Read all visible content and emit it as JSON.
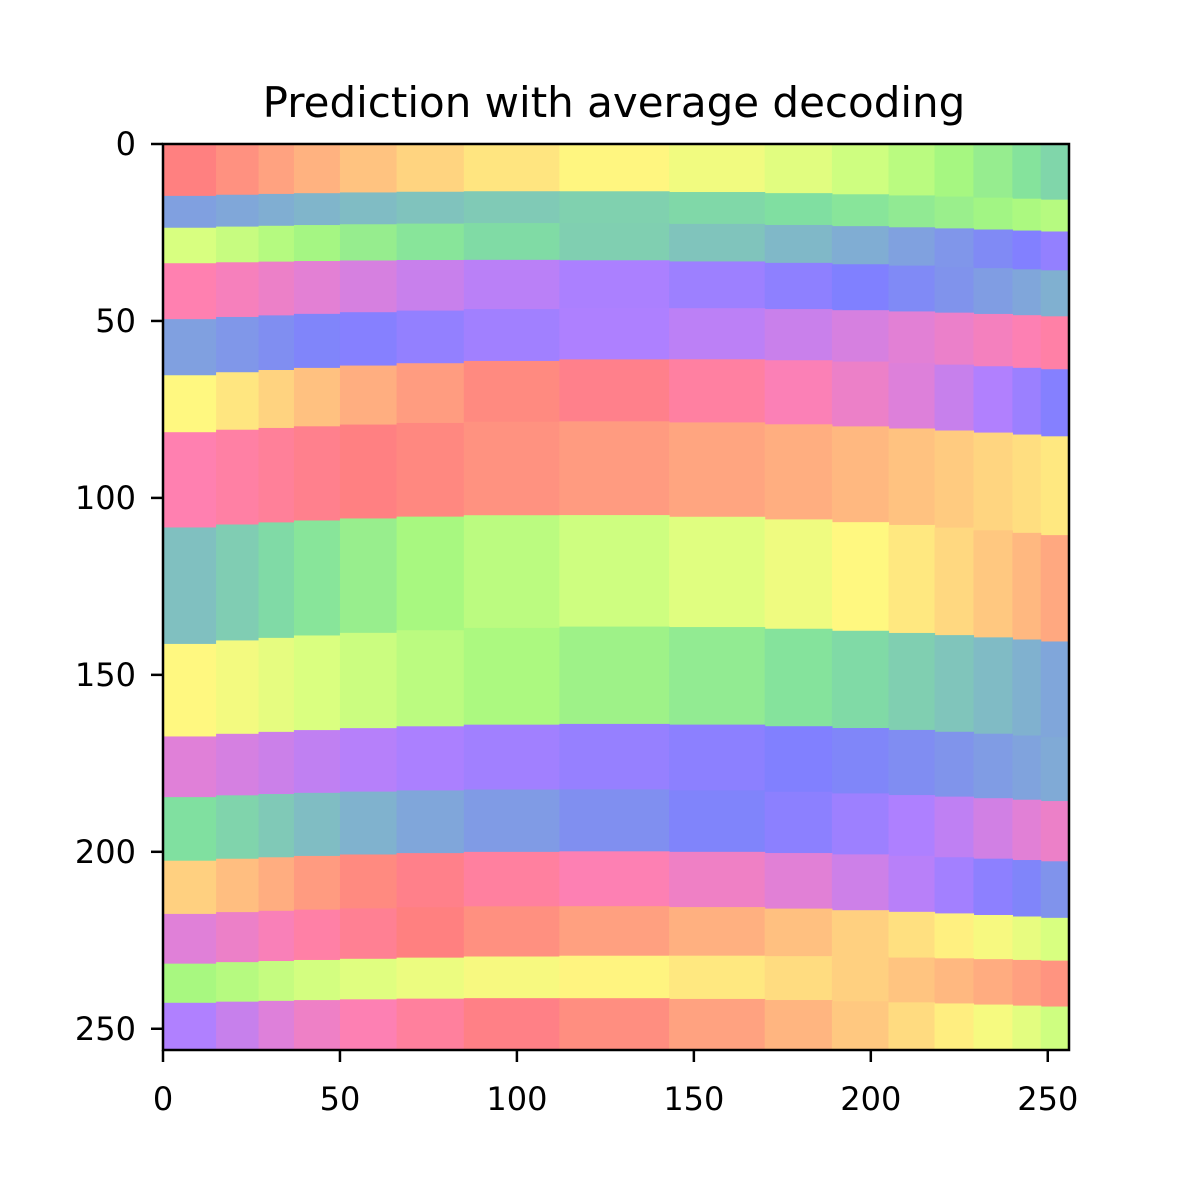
{
  "chart_data": {
    "type": "heatmap",
    "title": "Prediction with average decoding",
    "xlabel": "",
    "ylabel": "",
    "xlim": [
      0,
      256
    ],
    "ylim": [
      256,
      0
    ],
    "y_axis_inverted": true,
    "x_ticks": [
      "0",
      "50",
      "100",
      "150",
      "200",
      "250"
    ],
    "y_ticks": [
      "0",
      "50",
      "100",
      "150",
      "200",
      "250"
    ],
    "x_tick_values": [
      0,
      50,
      100,
      150,
      200,
      250
    ],
    "y_tick_values": [
      0,
      50,
      100,
      150,
      200,
      250
    ],
    "grid": false,
    "colormap": [
      "#ff8080",
      "#ffa880",
      "#ffd080",
      "#fff880",
      "#d8ff80",
      "#a8f880",
      "#80e0a0",
      "#80c0c0",
      "#80a0e0",
      "#8080ff",
      "#b080ff",
      "#e080d8",
      "#ff80b0"
    ],
    "column_edges": [
      0,
      15,
      27,
      37,
      50,
      66,
      85,
      112,
      143,
      170,
      189,
      205,
      218,
      229,
      240,
      248,
      256
    ],
    "band_edges_left": [
      0,
      15,
      24,
      34,
      50,
      66,
      82,
      109,
      142,
      168,
      185,
      203,
      218,
      232,
      243,
      256
    ],
    "band_edges_right": [
      0,
      16,
      25,
      36,
      49,
      64,
      83,
      111,
      141,
      168,
      186,
      203,
      219,
      231,
      244,
      256
    ],
    "band_edges_bow": [
      0,
      -2,
      -2,
      -2,
      -3,
      -4,
      -4,
      -5,
      -5,
      -4,
      -3,
      -3,
      -3,
      -2,
      -2,
      0
    ],
    "color_index_left": [
      0,
      8,
      4,
      12,
      8,
      3,
      12,
      7,
      3,
      11,
      6,
      2,
      11,
      5,
      10
    ],
    "color_index_step": [
      0.42,
      -0.22,
      0.36,
      -0.3,
      0.28,
      -0.46,
      0.24,
      -0.4,
      0.32,
      -0.22,
      0.36,
      -0.44,
      0.4,
      -0.3,
      0.48
    ]
  }
}
